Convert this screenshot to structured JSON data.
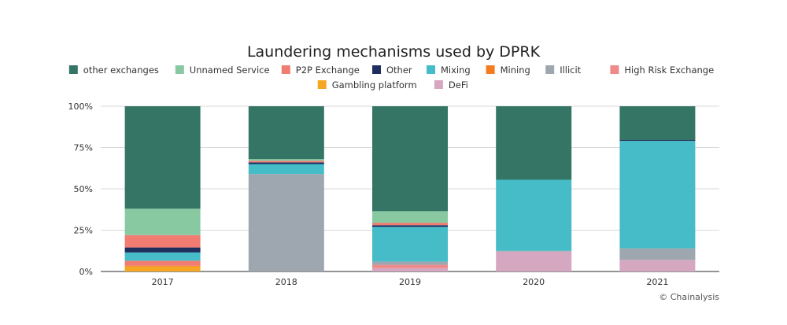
{
  "chart_data": {
    "type": "bar",
    "stacked": true,
    "title": "Laundering mechanisms used by DPRK",
    "categories": [
      "2017",
      "2018",
      "2019",
      "2020",
      "2021"
    ],
    "y_ticks": [
      "0%",
      "25%",
      "50%",
      "75%",
      "100%"
    ],
    "ylim": [
      0,
      100
    ],
    "grid": true,
    "legend_position": "top",
    "credit": "© Chainalysis",
    "series": [
      {
        "name": "Gambling platform",
        "color": "#f5a623",
        "values": [
          3,
          0,
          0,
          0,
          0
        ]
      },
      {
        "name": "DeFi",
        "color": "#d6a7c1",
        "values": [
          0,
          0,
          2,
          12,
          7
        ]
      },
      {
        "name": "High Risk Exchange",
        "color": "#f08a8a",
        "values": [
          0,
          0,
          2,
          0,
          0
        ]
      },
      {
        "name": "Mining",
        "color": "#f47c20",
        "values": [
          0.5,
          0,
          0,
          0,
          0
        ]
      },
      {
        "name": "Illicit",
        "color": "#9ea7af",
        "values": [
          0,
          59,
          2,
          0.5,
          7
        ]
      },
      {
        "name": "P2P Exchange",
        "color": "#f07c72",
        "values": [
          3,
          0,
          0,
          0,
          0
        ]
      },
      {
        "name": "Mixing",
        "color": "#45bcc7",
        "values": [
          5,
          6,
          21,
          43,
          65
        ]
      },
      {
        "name": "Other",
        "color": "#1e2f5f",
        "values": [
          3,
          1,
          1,
          0,
          0.5
        ]
      },
      {
        "name": "P2P Exchange",
        "color": "#f07c72",
        "values": [
          7.5,
          1,
          1.5,
          0,
          0
        ]
      },
      {
        "name": "Unnamed Service",
        "color": "#88c9a1",
        "values": [
          16,
          1,
          7,
          0,
          0
        ]
      },
      {
        "name": "other exchanges",
        "color": "#357565",
        "values": [
          62,
          32,
          63.5,
          44.5,
          20.5
        ]
      }
    ],
    "legend": [
      {
        "name": "other exchanges",
        "color": "#357565"
      },
      {
        "name": "Unnamed Service",
        "color": "#88c9a1"
      },
      {
        "name": "P2P Exchange",
        "color": "#f07c72"
      },
      {
        "name": "Other",
        "color": "#1e2f5f"
      },
      {
        "name": "Mixing",
        "color": "#45bcc7"
      },
      {
        "name": "Mining",
        "color": "#f47c20"
      },
      {
        "name": "Illicit",
        "color": "#9ea7af"
      },
      {
        "name": "High Risk Exchange",
        "color": "#f08a8a"
      },
      {
        "name": "Gambling platform",
        "color": "#f5a623"
      },
      {
        "name": "DeFi",
        "color": "#d6a7c1"
      }
    ]
  }
}
